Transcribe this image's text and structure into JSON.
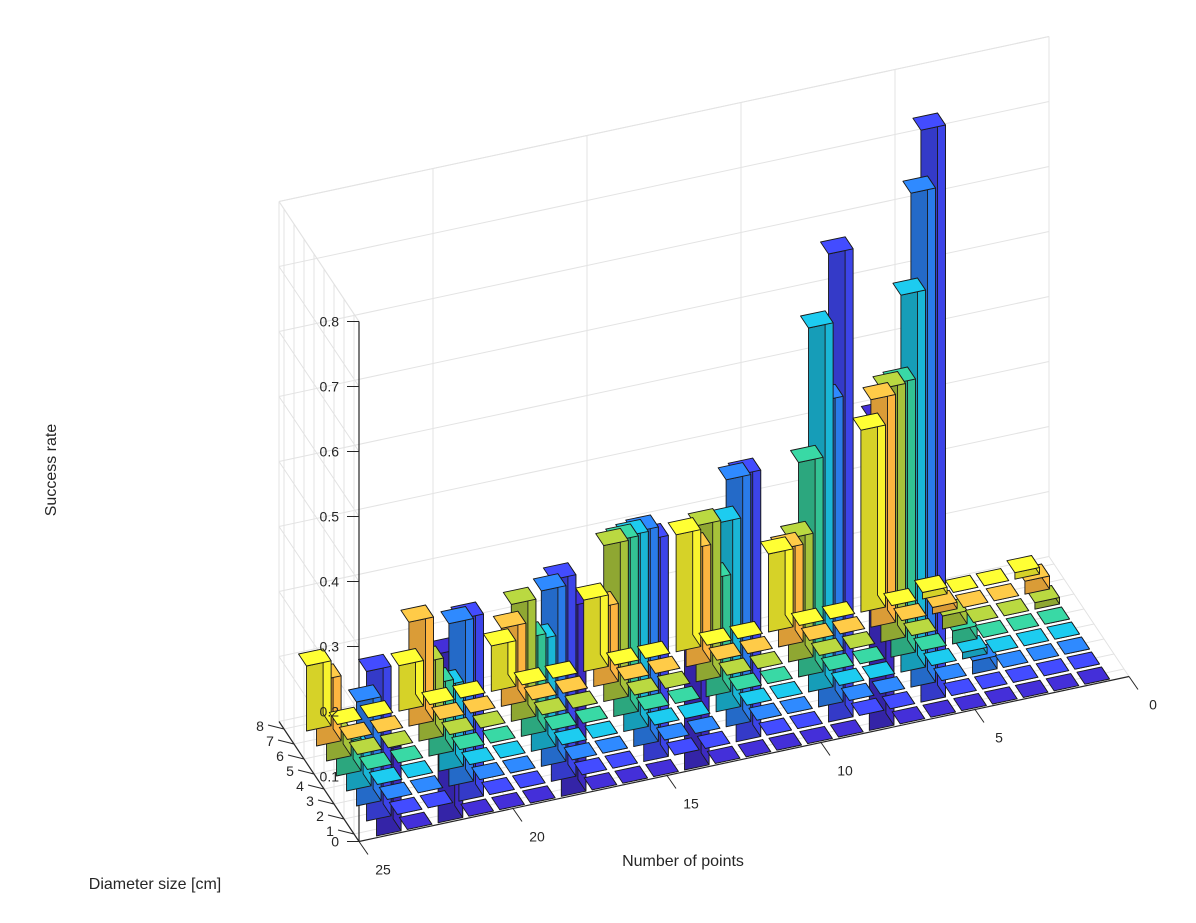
{
  "chart_data": {
    "type": "bar3",
    "title": "",
    "zlabel": "Success rate",
    "xlabel": "Number of points",
    "ylabel": "Diameter size [cm]",
    "zlim": [
      0,
      0.8
    ],
    "z_ticks": [
      "0",
      "0.1",
      "0.2",
      "0.3",
      "0.4",
      "0.5",
      "0.6",
      "0.7",
      "0.8"
    ],
    "x_ticks": [
      "0",
      "5",
      "10",
      "15",
      "20",
      "25"
    ],
    "y_ticks": [
      "1",
      "2",
      "3",
      "4",
      "5",
      "6",
      "7",
      "8"
    ],
    "grid": true,
    "x": [
      1,
      2,
      3,
      4,
      5,
      6,
      7,
      8,
      9,
      10,
      11,
      12,
      13,
      14,
      15,
      16,
      17,
      18,
      19,
      20,
      21,
      22,
      23,
      24
    ],
    "series": [
      {
        "name": "1 cm",
        "color": "#3d2ac2",
        "values": [
          0,
          0,
          0,
          0,
          0,
          0,
          0,
          0.48,
          0,
          0,
          0,
          0,
          0,
          0.31,
          0,
          0,
          0,
          0.29,
          0,
          0,
          0,
          0.26,
          0,
          0.13
        ]
      },
      {
        "name": "2 cm",
        "color": "#3c44e8",
        "values": [
          0,
          0,
          0,
          0,
          0,
          0.88,
          0,
          0,
          0.72,
          0,
          0,
          0.41,
          0,
          0,
          0.34,
          0,
          0,
          0.31,
          0,
          0,
          0.28,
          0,
          0,
          0.23
        ]
      },
      {
        "name": "3 cm",
        "color": "#2a7be8",
        "values": [
          0,
          0,
          0,
          0.02,
          0,
          0.76,
          0,
          0,
          0.47,
          0,
          0,
          0.38,
          0,
          0,
          0.33,
          0,
          0,
          0.27,
          0,
          0,
          0.25,
          0,
          0,
          0.16
        ]
      },
      {
        "name": "4 cm",
        "color": "#1ab6d6",
        "values": [
          0,
          0,
          0,
          0.01,
          0,
          0.58,
          0,
          0,
          0.56,
          0,
          0,
          0.29,
          0,
          0,
          0.3,
          0,
          0,
          0.17,
          0,
          0,
          0.13,
          0,
          0,
          0.06
        ]
      },
      {
        "name": "5 cm",
        "color": "#33c293",
        "values": [
          0,
          0,
          0,
          0.02,
          0,
          0.42,
          0,
          0,
          0.33,
          0,
          0,
          0.18,
          0,
          0,
          0.27,
          0,
          0,
          0.15,
          0,
          0,
          0.11,
          0,
          0,
          0.05
        ]
      },
      {
        "name": "6 cm",
        "color": "#a6c23a",
        "values": [
          0.01,
          0,
          0,
          0.02,
          0,
          0.39,
          0,
          0,
          0.19,
          0,
          0,
          0.24,
          0,
          0,
          0.24,
          0,
          0,
          0.18,
          0,
          0,
          0.12,
          0,
          0,
          0.04
        ]
      },
      {
        "name": "7 cm",
        "color": "#fdb540",
        "values": [
          0.02,
          0,
          0,
          0.01,
          0,
          0.35,
          0,
          0,
          0.15,
          0,
          0,
          0.18,
          0,
          0,
          0.12,
          0,
          0,
          0.12,
          0,
          0,
          0.16,
          0,
          0,
          0.1
        ]
      },
      {
        "name": "8 cm",
        "color": "#f9f42e",
        "values": [
          0.01,
          0,
          0,
          0.01,
          0,
          0.28,
          0,
          0,
          0.12,
          0,
          0,
          0.18,
          0,
          0,
          0.11,
          0,
          0,
          0.07,
          0,
          0,
          0.07,
          0,
          0,
          0.1
        ]
      }
    ]
  }
}
